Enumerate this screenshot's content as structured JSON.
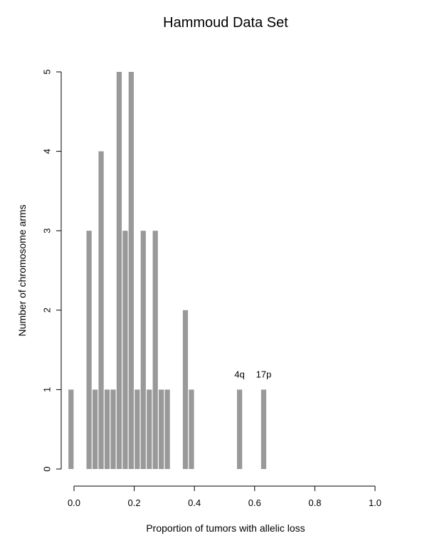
{
  "chart_data": {
    "type": "bar",
    "title": "Hammoud Data Set",
    "xlabel": "Proportion of tumors with allelic loss",
    "ylabel": "Number of chromosome arms",
    "xlim": [
      0.0,
      1.0
    ],
    "ylim": [
      0,
      5
    ],
    "x_ticks": [
      "0.0",
      "0.2",
      "0.4",
      "0.6",
      "0.8",
      "1.0"
    ],
    "x_tick_values": [
      0.0,
      0.2,
      0.4,
      0.6,
      0.8,
      1.0
    ],
    "y_ticks": [
      "0",
      "1",
      "2",
      "3",
      "4",
      "5"
    ],
    "y_tick_values": [
      0,
      1,
      2,
      3,
      4,
      5
    ],
    "bar_width": 0.02,
    "bars": [
      {
        "x": -0.01,
        "value": 1
      },
      {
        "x": 0.05,
        "value": 3
      },
      {
        "x": 0.07,
        "value": 1
      },
      {
        "x": 0.09,
        "value": 4
      },
      {
        "x": 0.11,
        "value": 1
      },
      {
        "x": 0.13,
        "value": 1
      },
      {
        "x": 0.15,
        "value": 5
      },
      {
        "x": 0.17,
        "value": 3
      },
      {
        "x": 0.19,
        "value": 5
      },
      {
        "x": 0.21,
        "value": 1
      },
      {
        "x": 0.23,
        "value": 3
      },
      {
        "x": 0.25,
        "value": 1
      },
      {
        "x": 0.27,
        "value": 3
      },
      {
        "x": 0.29,
        "value": 1
      },
      {
        "x": 0.31,
        "value": 1
      },
      {
        "x": 0.37,
        "value": 2
      },
      {
        "x": 0.39,
        "value": 1
      },
      {
        "x": 0.55,
        "value": 1
      },
      {
        "x": 0.63,
        "value": 1
      }
    ],
    "annotations": [
      {
        "text": "4q",
        "x": 0.55,
        "y": 1
      },
      {
        "text": "17p",
        "x": 0.63,
        "y": 1
      }
    ],
    "bar_color": "#999999",
    "grid": false,
    "legend": "none"
  }
}
